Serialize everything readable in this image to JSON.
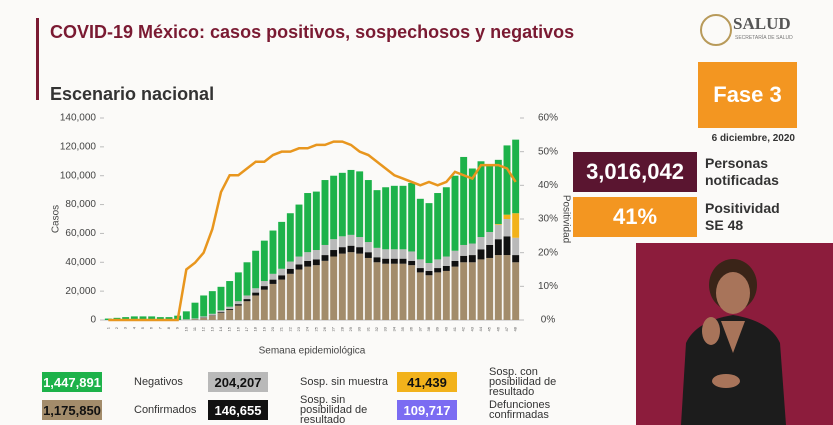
{
  "header": {
    "title": "COVID-19 México: casos positivos, sospechosos y negativos",
    "subtitle": "Escenario nacional",
    "logo": "SALUD",
    "logo_sub": "SECRETARÍA DE SALUD"
  },
  "panel": {
    "phase": "Fase 3",
    "date": "6 diciembre, 2020",
    "notified_value": "3,016,042",
    "notified_label": "Personas notificadas",
    "positivity_value": "41%",
    "positivity_label": "Positividad SE 48"
  },
  "chart_data": {
    "type": "bar",
    "stacked": true,
    "x_label": "Semana epidemiológica",
    "y_label": "Casos",
    "y2_label": "Positividad",
    "categories": [
      "1",
      "2",
      "3",
      "4",
      "5",
      "6",
      "7",
      "8",
      "9",
      "10",
      "11",
      "12",
      "13",
      "14",
      "15",
      "16",
      "17",
      "18",
      "19",
      "20",
      "21",
      "22",
      "23",
      "24",
      "25",
      "26",
      "27",
      "28",
      "29",
      "30",
      "31",
      "32",
      "33",
      "34",
      "35",
      "36",
      "37",
      "38",
      "39",
      "40",
      "41",
      "42",
      "43",
      "44",
      "45",
      "46",
      "47",
      "48"
    ],
    "ylim": [
      0,
      140000
    ],
    "yticks": [
      0,
      {
        "value": 20000,
        "label": "20,000"
      },
      {
        "value": 40000,
        "label": "40,000"
      },
      {
        "value": 60000,
        "label": "60,000"
      },
      {
        "value": 80000,
        "label": "80,000"
      },
      {
        "value": 100000,
        "label": "100,000"
      },
      {
        "value": 120000,
        "label": "120,000"
      },
      {
        "value": 140000,
        "label": "140,000"
      }
    ],
    "y2lim": [
      0,
      60
    ],
    "y2ticks": [
      {
        "value": 0,
        "label": "0%"
      },
      {
        "value": 10,
        "label": "10%"
      },
      {
        "value": 20,
        "label": "20%"
      },
      {
        "value": 30,
        "label": "30%"
      },
      {
        "value": 40,
        "label": "40%"
      },
      {
        "value": 50,
        "label": "50%"
      },
      {
        "value": 60,
        "label": "60%"
      }
    ],
    "series": [
      {
        "name": "Confirmados",
        "total": "1,175,850",
        "color": "#a38c6b",
        "values": [
          0,
          0,
          0,
          0,
          0,
          0,
          0,
          0,
          0,
          200,
          500,
          1500,
          3000,
          5000,
          7000,
          10000,
          13000,
          17000,
          21000,
          25000,
          28000,
          32000,
          35000,
          37000,
          38000,
          41000,
          44000,
          46000,
          47000,
          46000,
          43000,
          40000,
          39000,
          39000,
          39000,
          38000,
          33000,
          31000,
          33000,
          34000,
          37000,
          40000,
          40000,
          42000,
          43000,
          45000,
          45000,
          40000
        ]
      },
      {
        "name": "Sosp. sin posibilidad de resultado",
        "total": "146,655",
        "color": "#111111",
        "values": [
          0,
          0,
          0,
          0,
          0,
          0,
          0,
          0,
          0,
          0,
          100,
          200,
          300,
          500,
          700,
          1000,
          1500,
          2000,
          2500,
          3000,
          3000,
          3500,
          3500,
          4000,
          4000,
          4000,
          4500,
          4500,
          4500,
          4500,
          4000,
          3500,
          3500,
          3500,
          3500,
          3000,
          3000,
          3000,
          3000,
          3500,
          4000,
          4500,
          5000,
          7000,
          9000,
          11000,
          13000,
          5000
        ]
      },
      {
        "name": "Sosp. sin muestra",
        "total": "204,207",
        "color": "#b9b9b9",
        "values": [
          0,
          0,
          0,
          0,
          0,
          0,
          0,
          0,
          0,
          300,
          500,
          800,
          1000,
          1200,
          1500,
          2000,
          2500,
          3000,
          3500,
          4000,
          4500,
          5000,
          5500,
          6000,
          6500,
          7000,
          7500,
          7500,
          7500,
          7000,
          7000,
          6500,
          6500,
          6500,
          6500,
          6500,
          6000,
          5500,
          6000,
          6500,
          7000,
          7500,
          8000,
          8500,
          9000,
          10000,
          12000,
          12000
        ]
      },
      {
        "name": "Sosp. con posibilidad de resultado",
        "total": "41,439",
        "color": "#f2b21b",
        "values": [
          0,
          0,
          0,
          0,
          0,
          0,
          0,
          0,
          0,
          0,
          0,
          0,
          0,
          0,
          0,
          0,
          0,
          0,
          0,
          0,
          0,
          0,
          0,
          0,
          0,
          0,
          0,
          0,
          0,
          0,
          0,
          0,
          0,
          0,
          0,
          0,
          0,
          0,
          0,
          0,
          0,
          0,
          0,
          0,
          0,
          500,
          3000,
          17000
        ]
      },
      {
        "name": "Negativos",
        "total": "1,447,891",
        "color": "#1db24a",
        "values": [
          1000,
          1500,
          2000,
          2500,
          2500,
          2500,
          2000,
          2000,
          3000,
          5500,
          10900,
          14500,
          15700,
          16300,
          17800,
          20000,
          23000,
          26000,
          28000,
          30000,
          32500,
          33500,
          36000,
          41000,
          40500,
          45000,
          44000,
          44000,
          45000,
          45500,
          43000,
          40000,
          43000,
          44000,
          44000,
          47500,
          42000,
          41500,
          46000,
          48000,
          52000,
          61000,
          52000,
          52500,
          47000,
          44500,
          48000,
          51000
        ]
      },
      {
        "name": "Positividad",
        "type": "line",
        "axis": "y2",
        "color": "#e8961e",
        "values": [
          0,
          0,
          0,
          0,
          0,
          0,
          0,
          0,
          0,
          15,
          17,
          20,
          27,
          38,
          43,
          43,
          45,
          47,
          47,
          49,
          50,
          50,
          51,
          51,
          52,
          52,
          53,
          53,
          52,
          50,
          49,
          47,
          45,
          43,
          42,
          41,
          40,
          41,
          40,
          41,
          44,
          43,
          42,
          46,
          46,
          46,
          45,
          41
        ]
      }
    ],
    "other_totals": [
      {
        "name": "Defunciones confirmadas",
        "total": "109,717",
        "color": "#7b6cf2"
      }
    ]
  }
}
